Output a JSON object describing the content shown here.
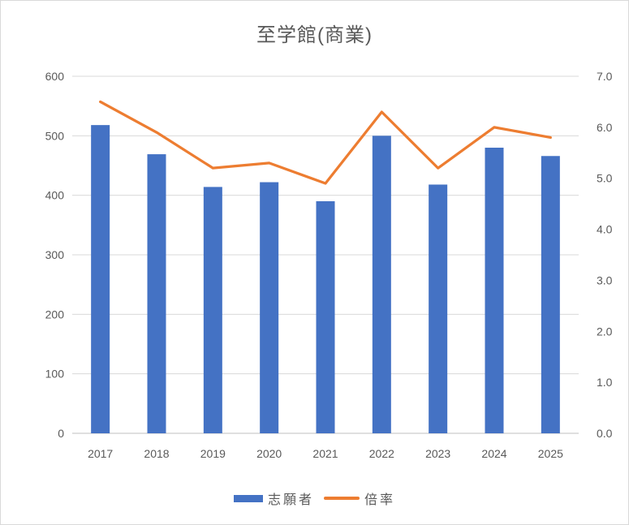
{
  "chart_data": {
    "type": "bar",
    "combo": "bar+line, secondary axis",
    "title": "至学館(商業)",
    "categories": [
      "2017",
      "2018",
      "2019",
      "2020",
      "2021",
      "2022",
      "2023",
      "2024",
      "2025"
    ],
    "series": [
      {
        "name": "志願者",
        "type": "bar",
        "axis": "left",
        "color": "#4472C4",
        "values": [
          518,
          469,
          414,
          422,
          390,
          500,
          418,
          480,
          466
        ]
      },
      {
        "name": "倍率",
        "type": "line",
        "axis": "right",
        "color": "#ED7D31",
        "values": [
          6.5,
          5.9,
          5.2,
          5.3,
          4.9,
          6.3,
          5.2,
          6.0,
          5.8
        ]
      }
    ],
    "left_axis": {
      "min": 0,
      "max": 600,
      "step": 100,
      "tick_labels": [
        "0",
        "100",
        "200",
        "300",
        "400",
        "500",
        "600"
      ]
    },
    "right_axis": {
      "min": 0,
      "max": 7,
      "step": 1,
      "tick_labels": [
        "0.0",
        "1.0",
        "2.0",
        "3.0",
        "4.0",
        "5.0",
        "6.0",
        "7.0"
      ]
    },
    "grid": "horizontal",
    "legend_position": "bottom",
    "styles": {
      "text_color": "#595959",
      "gridline_color": "#D9D9D9",
      "axis_line_color": "#BFBFBF",
      "background": "#FFFFFF",
      "border_color": "#D9D9D9"
    }
  }
}
